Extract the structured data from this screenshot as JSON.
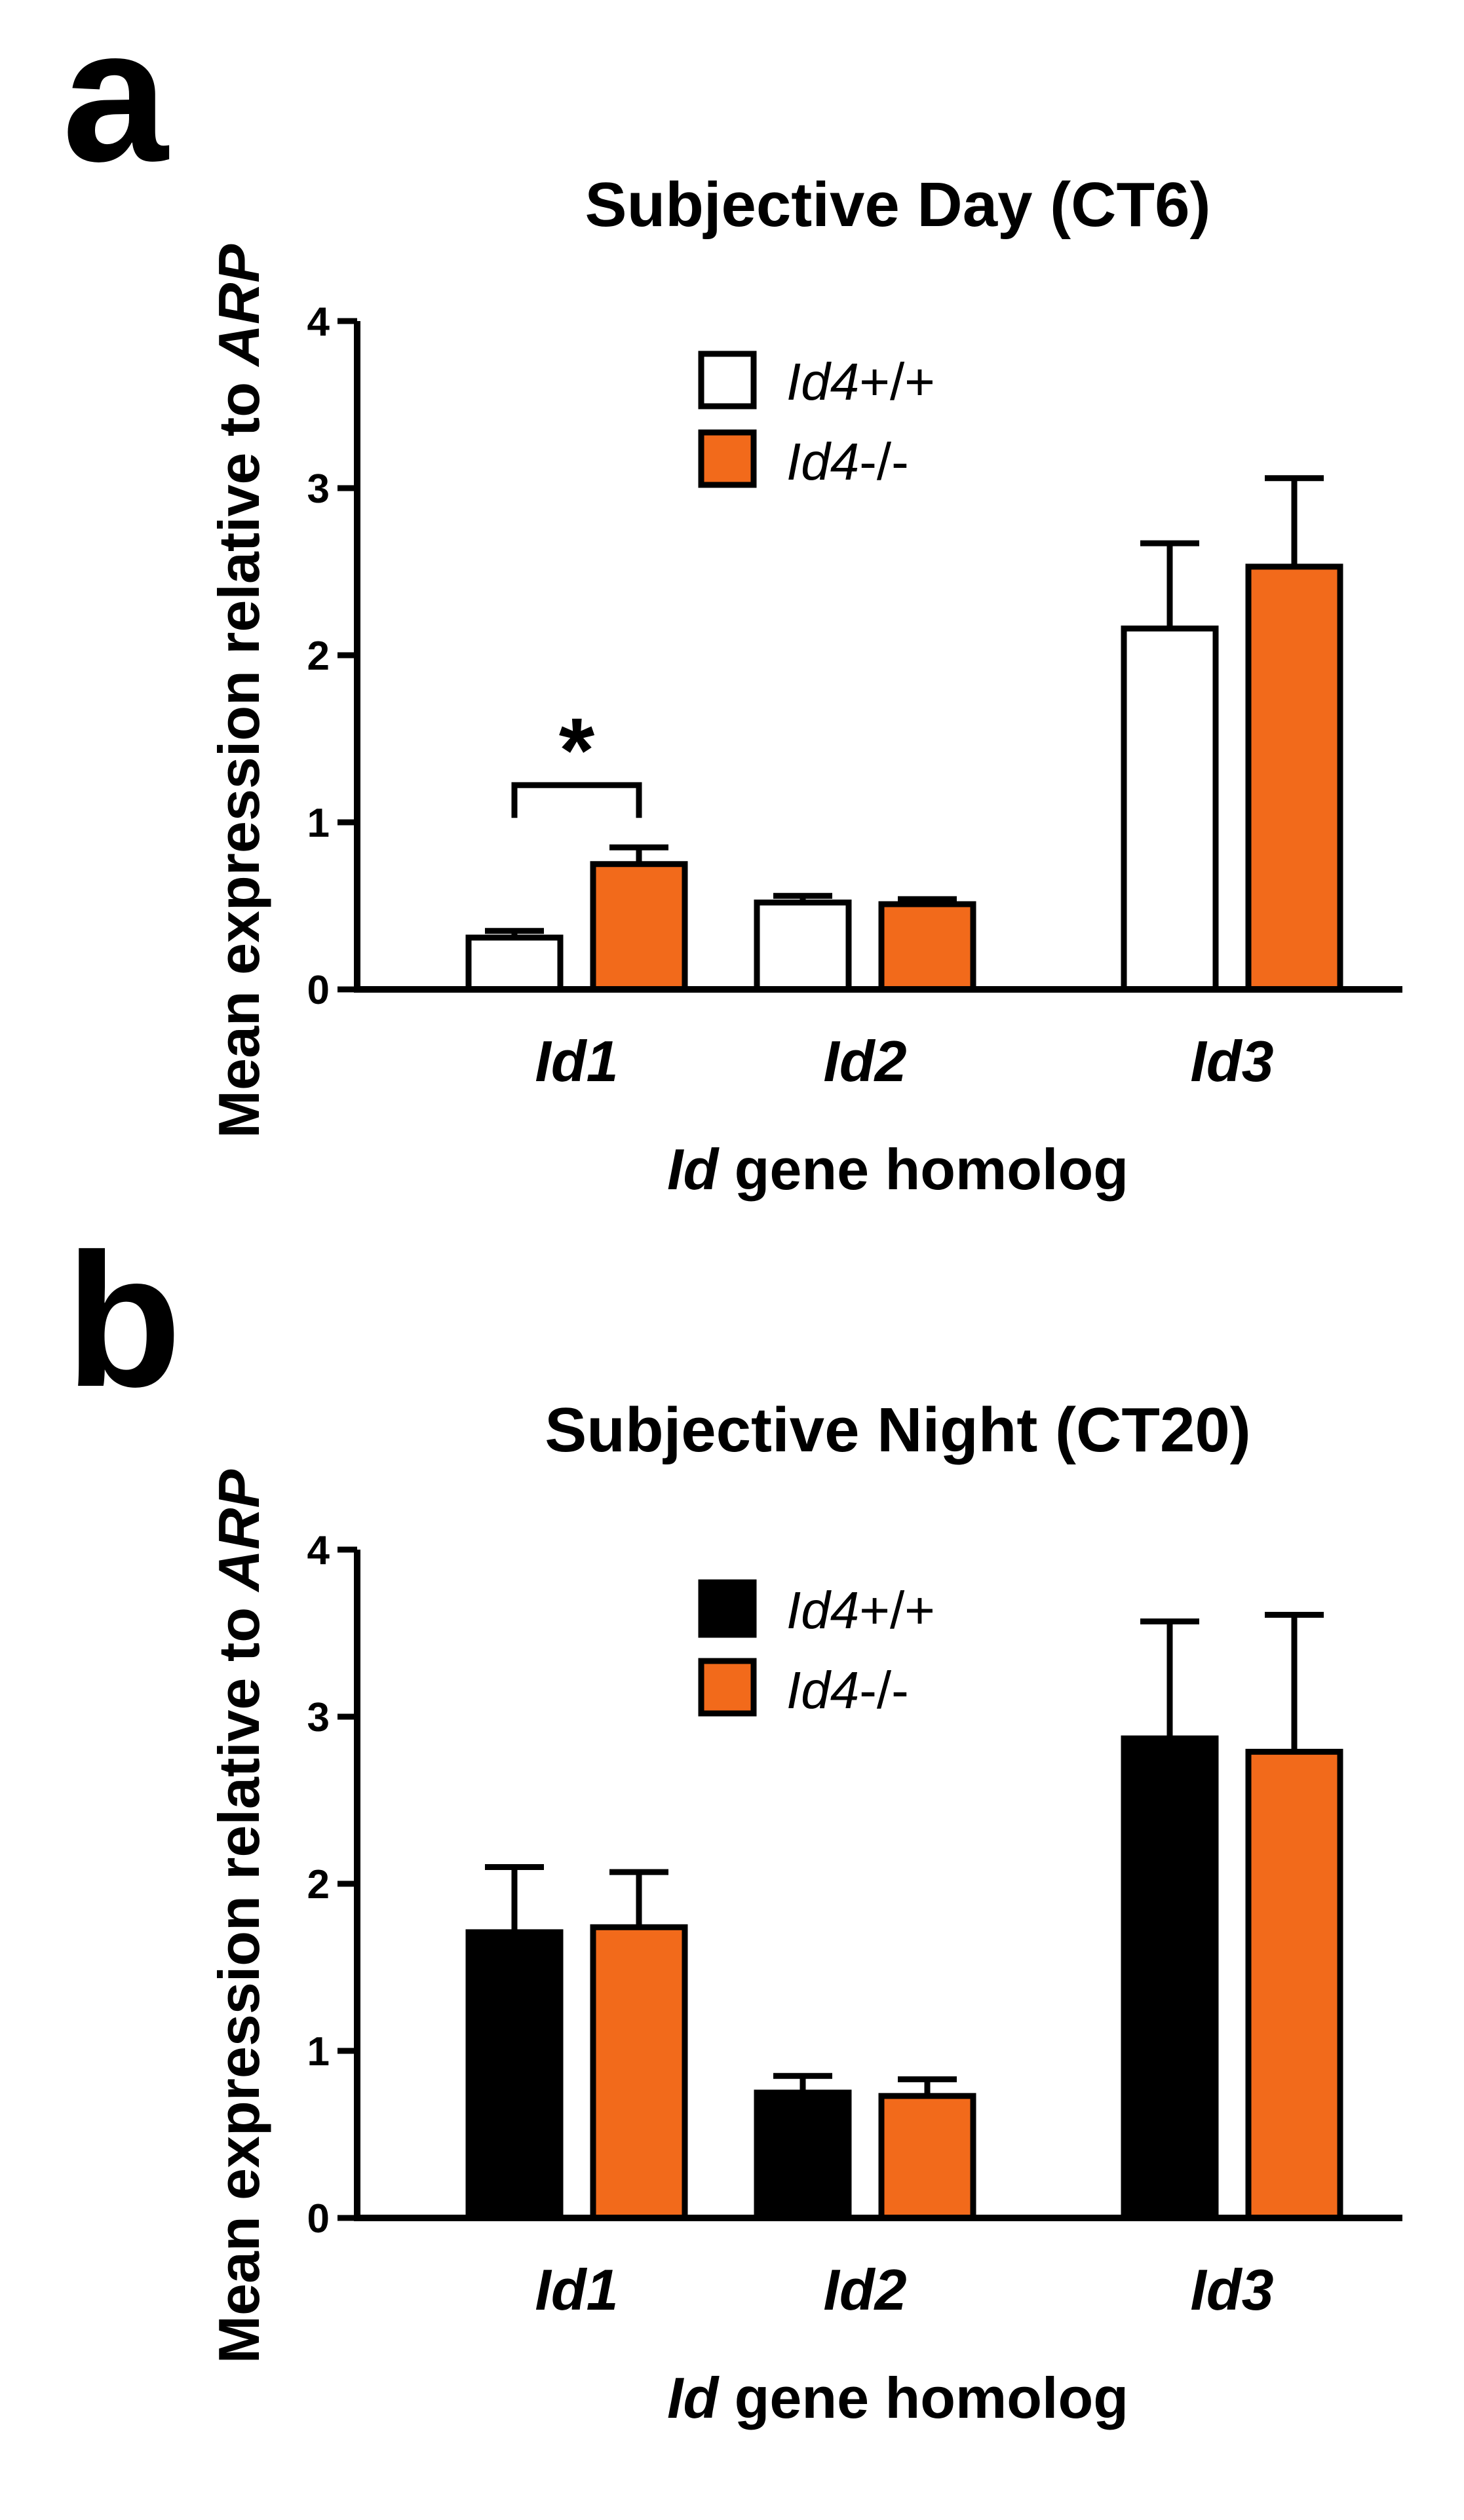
{
  "figure": {
    "panel_a": {
      "letter": "a"
    },
    "panel_b": {
      "letter": "b"
    }
  },
  "chart_data": [
    {
      "type": "bar",
      "panel": "a",
      "title": "Subjective Day (CT6)",
      "xlabel_italic": "Id",
      "xlabel_rest": " gene homolog",
      "ylabel_prefix": "Mean expression relative to ",
      "ylabel_italic": "ARP",
      "categories": [
        "Id1",
        "Id2",
        "Id3"
      ],
      "ylim": [
        0,
        4
      ],
      "yticks": [
        0,
        1,
        2,
        3,
        4
      ],
      "ytick_labels": [
        "0",
        "1",
        "2",
        "3",
        "4"
      ],
      "series": [
        {
          "name_italic": "Id4",
          "name_rest": "+/+",
          "color": "#ffffff",
          "values": [
            0.31,
            0.52,
            2.16
          ],
          "errors": [
            0.04,
            0.04,
            0.51
          ]
        },
        {
          "name_italic": "Id4",
          "name_rest": "-/-",
          "color": "#f26a1b",
          "values": [
            0.75,
            0.51,
            2.53
          ],
          "errors": [
            0.1,
            0.03,
            0.53
          ]
        }
      ],
      "annotations": [
        {
          "text": "*",
          "between": [
            "Id1 Id4+/+",
            "Id1 Id4-/-"
          ]
        }
      ]
    },
    {
      "type": "bar",
      "panel": "b",
      "title": "Subjective Night (CT20)",
      "xlabel_italic": "Id",
      "xlabel_rest": " gene homolog",
      "ylabel_prefix": "Mean expression relative to ",
      "ylabel_italic": "ARP",
      "categories": [
        "Id1",
        "Id2",
        "Id3"
      ],
      "ylim": [
        0,
        4
      ],
      "yticks": [
        0,
        1,
        2,
        3,
        4
      ],
      "ytick_labels": [
        "0",
        "1",
        "2",
        "3",
        "4"
      ],
      "series": [
        {
          "name_italic": "Id4",
          "name_rest": "+/+",
          "color": "#000000",
          "values": [
            1.71,
            0.75,
            2.87
          ],
          "errors": [
            0.39,
            0.1,
            0.7
          ]
        },
        {
          "name_italic": "Id4",
          "name_rest": "-/-",
          "color": "#f26a1b",
          "values": [
            1.74,
            0.73,
            2.79
          ],
          "errors": [
            0.33,
            0.1,
            0.82
          ]
        }
      ],
      "annotations": []
    }
  ]
}
